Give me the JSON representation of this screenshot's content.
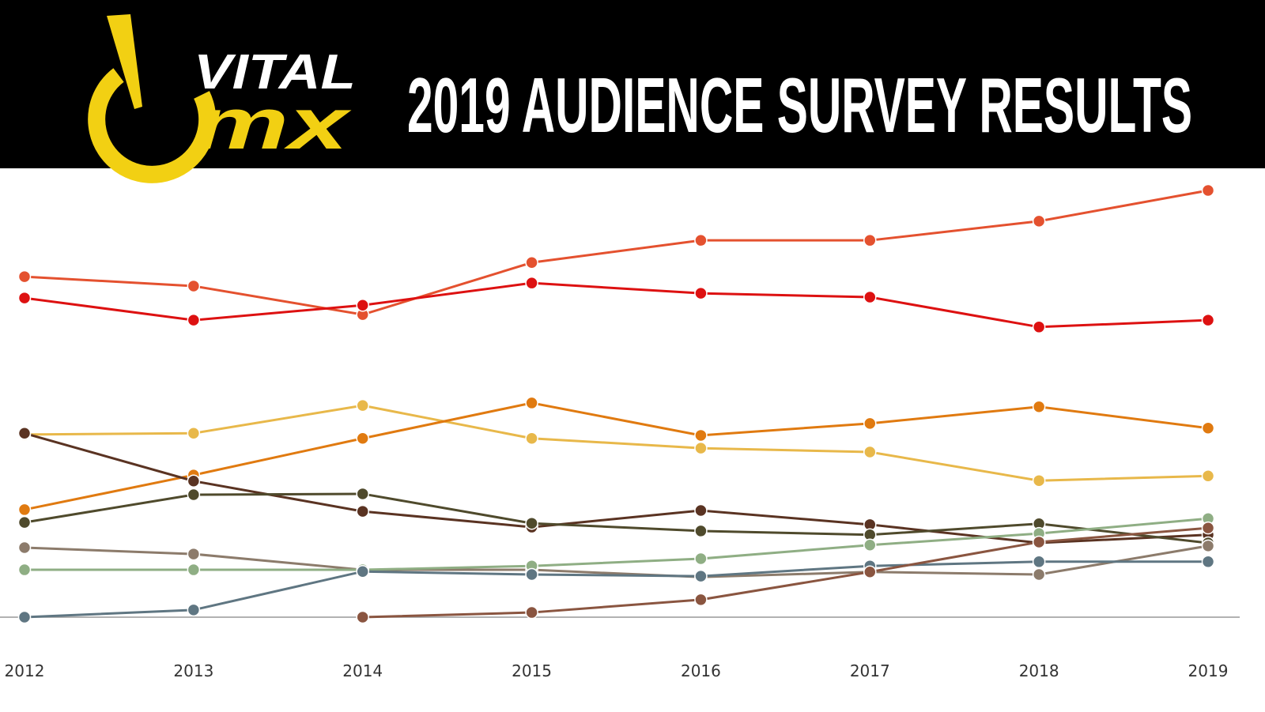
{
  "logo": {
    "top": "VITAL",
    "bottom": "mx"
  },
  "chart_data": {
    "type": "line",
    "title": "2019 AUDIENCE SURVEY RESULTS",
    "categories": [
      "2012",
      "2013",
      "2014",
      "2015",
      "2016",
      "2017",
      "2018",
      "2019"
    ],
    "ylim": [
      0,
      105
    ],
    "series": [
      {
        "color": "#e4512f",
        "values": [
          79.8,
          77.6,
          70.9,
          83.1,
          88.3,
          88.3,
          92.8,
          100
        ]
      },
      {
        "color": "#dd1111",
        "values": [
          74.8,
          69.6,
          73.1,
          78.3,
          75.9,
          75.0,
          68.0,
          69.6
        ]
      },
      {
        "color": "#e8b84a",
        "values": [
          42.8,
          43.1,
          49.6,
          41.9,
          39.6,
          38.7,
          32.0,
          33.1
        ]
      },
      {
        "color": "#e07a10",
        "values": [
          25.2,
          33.3,
          41.9,
          50.2,
          42.6,
          45.4,
          49.3,
          44.3
        ]
      },
      {
        "color": "#5a3322",
        "values": [
          43.1,
          31.9,
          24.8,
          21.1,
          25.0,
          21.7,
          17.4,
          19.3
        ]
      },
      {
        "color": "#4f4a2c",
        "values": [
          22.2,
          28.7,
          28.9,
          22.0,
          20.2,
          19.3,
          21.9,
          17.4
        ]
      },
      {
        "color": "#8c7b6b",
        "values": [
          16.3,
          14.8,
          11.1,
          11.1,
          9.4,
          10.6,
          10.0,
          16.7
        ]
      },
      {
        "color": "#8fae84",
        "values": [
          11.1,
          11.1,
          11.1,
          12.0,
          13.7,
          16.9,
          19.6,
          23.1
        ]
      },
      {
        "color": "#5f7682",
        "values": [
          0,
          1.7,
          10.7,
          10.0,
          9.6,
          12.0,
          13.0,
          13.0
        ]
      },
      {
        "color": "#8a5540",
        "values": [
          null,
          null,
          0,
          1.1,
          4.1,
          10.6,
          17.6,
          20.9
        ]
      }
    ]
  }
}
